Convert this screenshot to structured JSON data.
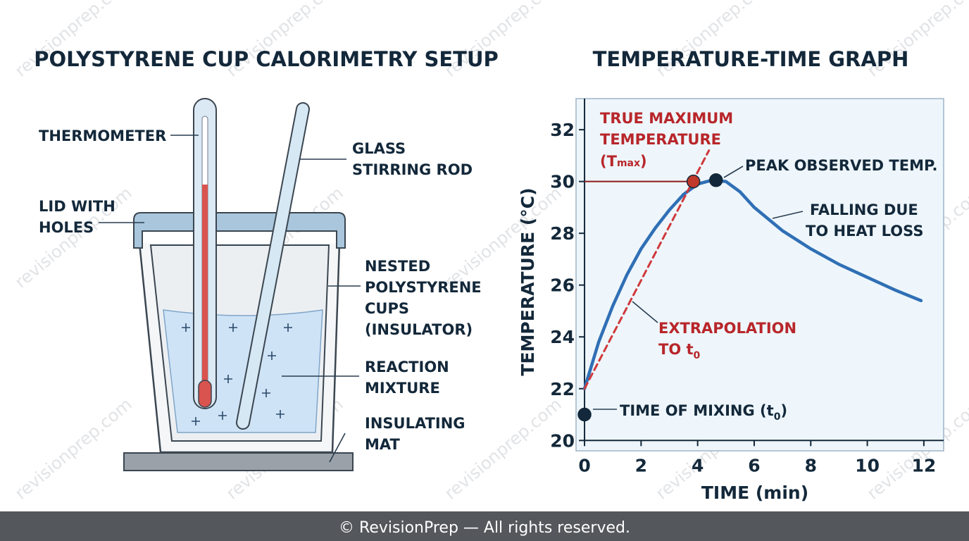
{
  "watermark": "revisionprep.com",
  "diagram": {
    "title": "POLYSTYRENE CUP CALORIMETRY SETUP",
    "labels": {
      "thermometer": [
        "THERMOMETER"
      ],
      "lid": [
        "LID WITH",
        "HOLES"
      ],
      "rod": [
        "GLASS",
        "STIRRING ROD"
      ],
      "cups": [
        "NESTED",
        "POLYSTYRENE",
        "CUPS",
        "(INSULATOR)"
      ],
      "mixture": [
        "REACTION",
        "MIXTURE"
      ],
      "mat": [
        "INSULATING",
        "MAT"
      ]
    }
  },
  "chart_data": {
    "type": "line",
    "title": "TEMPERATURE-TIME GRAPH",
    "x_label": "TIME (min)",
    "y_label": "TEMPERATURE (°C)",
    "xlim": [
      -0.3,
      12.7
    ],
    "ylim": [
      19.6,
      33.2
    ],
    "xticks": [
      0,
      2,
      4,
      6,
      8,
      10,
      12
    ],
    "yticks": [
      20,
      22,
      24,
      26,
      28,
      30,
      32
    ],
    "series": [
      {
        "kind": "line",
        "color": "#2f6fb5",
        "dashed": false,
        "x": [
          0,
          0.5,
          1,
          1.5,
          2,
          2.5,
          3,
          3.5,
          4,
          4.5,
          5,
          5.5,
          6,
          7,
          8,
          9,
          10,
          11,
          11.9
        ],
        "values": [
          22,
          23.8,
          25.2,
          26.4,
          27.4,
          28.2,
          28.9,
          29.5,
          29.9,
          30.05,
          30,
          29.6,
          29.0,
          28.1,
          27.4,
          26.8,
          26.3,
          25.8,
          25.4
        ]
      },
      {
        "kind": "line",
        "color": "#d0393b",
        "dashed": true,
        "x": [
          0,
          4.4
        ],
        "values": [
          22,
          31.2
        ]
      },
      {
        "kind": "point",
        "color": "#13283a",
        "x": [
          0
        ],
        "values": [
          21
        ]
      },
      {
        "kind": "point",
        "color": "#c0392b",
        "x": [
          3.85
        ],
        "values": [
          30
        ]
      },
      {
        "kind": "point",
        "color": "#13283a",
        "x": [
          4.65
        ],
        "values": [
          30.05
        ]
      }
    ],
    "annotations": {
      "tmax": [
        "TRUE MAXIMUM",
        "TEMPERATURE",
        [
          "(T",
          "max",
          ")"
        ]
      ],
      "peak": [
        "PEAK OBSERVED TEMP."
      ],
      "falling": [
        "FALLING DUE",
        "TO HEAT LOSS"
      ],
      "extrapolation": [
        "EXTRAPOLATION",
        [
          "TO t",
          "0"
        ]
      ],
      "mixing": [
        [
          "TIME OF MIXING (t",
          "0",
          ")"
        ]
      ]
    }
  },
  "footer": "© RevisionPrep — All rights reserved."
}
